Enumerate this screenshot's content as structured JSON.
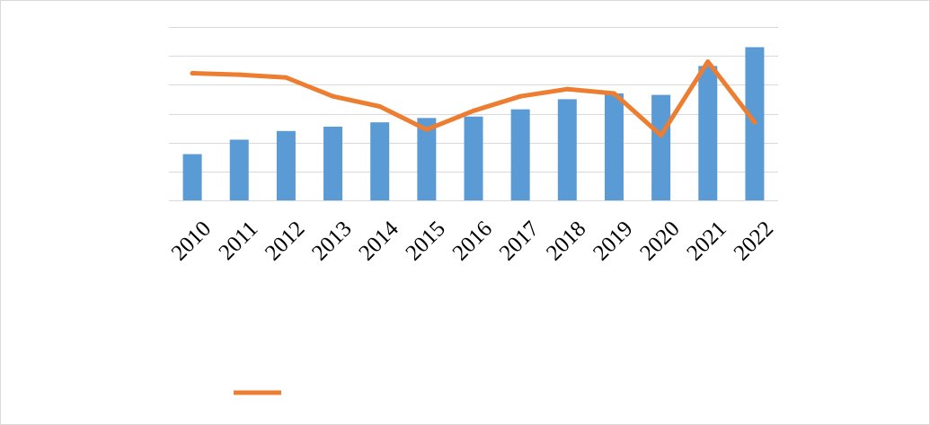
{
  "chart_data": {
    "type": "bar+line",
    "title": "",
    "xlabel": "",
    "ylabel": "",
    "categories": [
      "2010",
      "2011",
      "2012",
      "2013",
      "2014",
      "2015",
      "2016",
      "2017",
      "2018",
      "2019",
      "2020",
      "2021",
      "2022"
    ],
    "bar_ylim": [
      0,
      6
    ],
    "line_ylim": [
      0,
      6
    ],
    "grid": true,
    "legend": "bottom",
    "series": [
      {
        "type": "bar",
        "color": "#5b9bd5",
        "values": [
          1.6,
          2.1,
          2.4,
          2.55,
          2.7,
          2.85,
          2.9,
          3.15,
          3.5,
          3.7,
          3.65,
          4.65,
          5.3
        ]
      },
      {
        "type": "line",
        "color": "#ed7d31",
        "values": [
          4.4,
          4.35,
          4.25,
          3.6,
          3.25,
          2.45,
          3.1,
          3.6,
          3.85,
          3.7,
          2.25,
          4.8,
          2.7
        ]
      }
    ]
  }
}
